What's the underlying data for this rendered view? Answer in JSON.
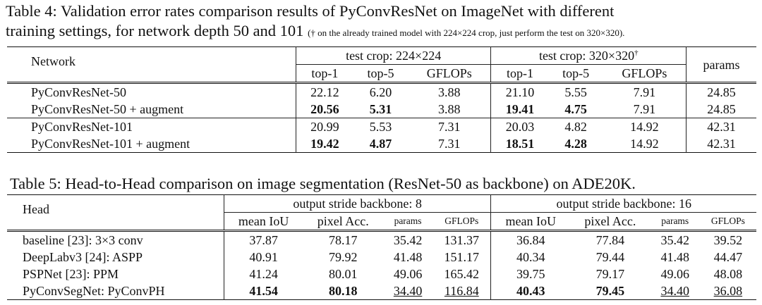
{
  "table4": {
    "caption_line1": "Table 4:  Validation error rates comparison results of PyConvResNet on ImageNet with different",
    "caption_line2": "training settings, for network depth 50 and 101",
    "caption_note": "(† on the already trained model with 224×224 crop, just perform the test on 320×320).",
    "col_network": "Network",
    "group1": "test crop: 224×224",
    "group2": "test crop: 320×320",
    "group2_mark": "†",
    "col_params": "params",
    "subcols": [
      "top-1",
      "top-5",
      "GFLOPs",
      "top-1",
      "top-5",
      "GFLOPs"
    ],
    "rows": [
      {
        "name": "PyConvResNet-50",
        "cells": [
          "22.12",
          "6.20",
          "3.88",
          "21.10",
          "5.55",
          "7.91",
          "24.85"
        ]
      },
      {
        "name": "PyConvResNet-50 + augment",
        "cells": [
          "20.56",
          "5.31",
          "3.88",
          "19.41",
          "4.75",
          "7.91",
          "24.85"
        ]
      },
      {
        "name": "PyConvResNet-101",
        "cells": [
          "20.99",
          "5.53",
          "7.31",
          "20.03",
          "4.82",
          "14.92",
          "42.31"
        ]
      },
      {
        "name": "PyConvResNet-101 + augment",
        "cells": [
          "19.42",
          "4.87",
          "7.31",
          "18.51",
          "4.28",
          "14.92",
          "42.31"
        ]
      }
    ]
  },
  "table5": {
    "caption": "Table 5: Head-to-Head comparison on image segmentation (ResNet-50 as backbone) on ADE20K.",
    "col_head": "Head",
    "group1": "output stride backbone: 8",
    "group2": "output stride backbone: 16",
    "subcols": [
      "mean IoU",
      "pixel Acc.",
      "params",
      "GFLOPs",
      "mean IoU",
      "pixel Acc.",
      "params",
      "GFLOPs"
    ],
    "rows": [
      {
        "name": "baseline [23]: 3×3 conv",
        "cells": [
          "37.87",
          "78.17",
          "35.42",
          "131.37",
          "36.84",
          "77.84",
          "35.42",
          "39.52"
        ]
      },
      {
        "name": "DeepLabv3 [24]: ASPP",
        "cells": [
          "40.91",
          "79.92",
          "41.48",
          "151.17",
          "40.34",
          "79.44",
          "41.48",
          "44.47"
        ]
      },
      {
        "name": "PSPNet [23]: PPM",
        "cells": [
          "41.24",
          "80.01",
          "49.06",
          "165.42",
          "39.75",
          "79.17",
          "49.06",
          "48.08"
        ]
      },
      {
        "name": "PyConvSegNet: PyConvPH",
        "cells": [
          "41.54",
          "80.18",
          "34.40",
          "116.84",
          "40.43",
          "79.45",
          "34.40",
          "36.08"
        ]
      }
    ]
  }
}
